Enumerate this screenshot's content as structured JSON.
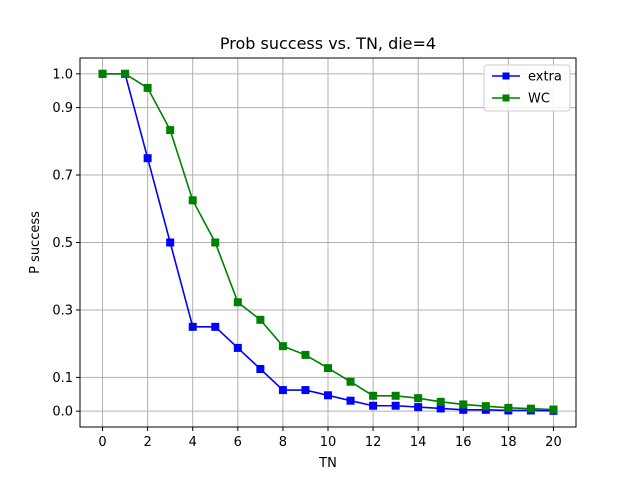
{
  "chart_data": {
    "type": "line",
    "title": "Prob success vs. TN, die=4",
    "xlabel": "TN",
    "ylabel": "P success",
    "xlim": [
      -1,
      21
    ],
    "ylim": [
      -0.047,
      1.047
    ],
    "xticks": [
      0,
      2,
      4,
      6,
      8,
      10,
      12,
      14,
      16,
      18,
      20
    ],
    "xtick_labels": [
      "0",
      "2",
      "4",
      "6",
      "8",
      "10",
      "12",
      "14",
      "16",
      "18",
      "20"
    ],
    "yticks": [
      0.0,
      0.1,
      0.3,
      0.5,
      0.7,
      0.9,
      1.0
    ],
    "ytick_labels": [
      "0.0",
      "0.1",
      "0.3",
      "0.5",
      "0.7",
      "0.9",
      "1.0"
    ],
    "grid": true,
    "legend_position": "top-right",
    "x": [
      0,
      1,
      2,
      3,
      4,
      5,
      6,
      7,
      8,
      9,
      10,
      11,
      12,
      13,
      14,
      15,
      16,
      17,
      18,
      19,
      20
    ],
    "series": [
      {
        "name": "extra",
        "color": "#0000ff",
        "marker": "square",
        "values": [
          1.0,
          1.0,
          0.75,
          0.5,
          0.25,
          0.25,
          0.1875,
          0.125,
          0.0625,
          0.0625,
          0.047,
          0.031,
          0.016,
          0.016,
          0.012,
          0.008,
          0.004,
          0.004,
          0.002,
          0.002,
          0.001
        ]
      },
      {
        "name": "WC",
        "color": "#008000",
        "marker": "square",
        "values": [
          1.0,
          1.0,
          0.9583,
          0.8333,
          0.625,
          0.5,
          0.3229,
          0.2708,
          0.1927,
          0.1667,
          0.1276,
          0.0872,
          0.0456,
          0.0456,
          0.0385,
          0.0276,
          0.0199,
          0.0148,
          0.0098,
          0.0074,
          0.0049
        ]
      }
    ]
  }
}
